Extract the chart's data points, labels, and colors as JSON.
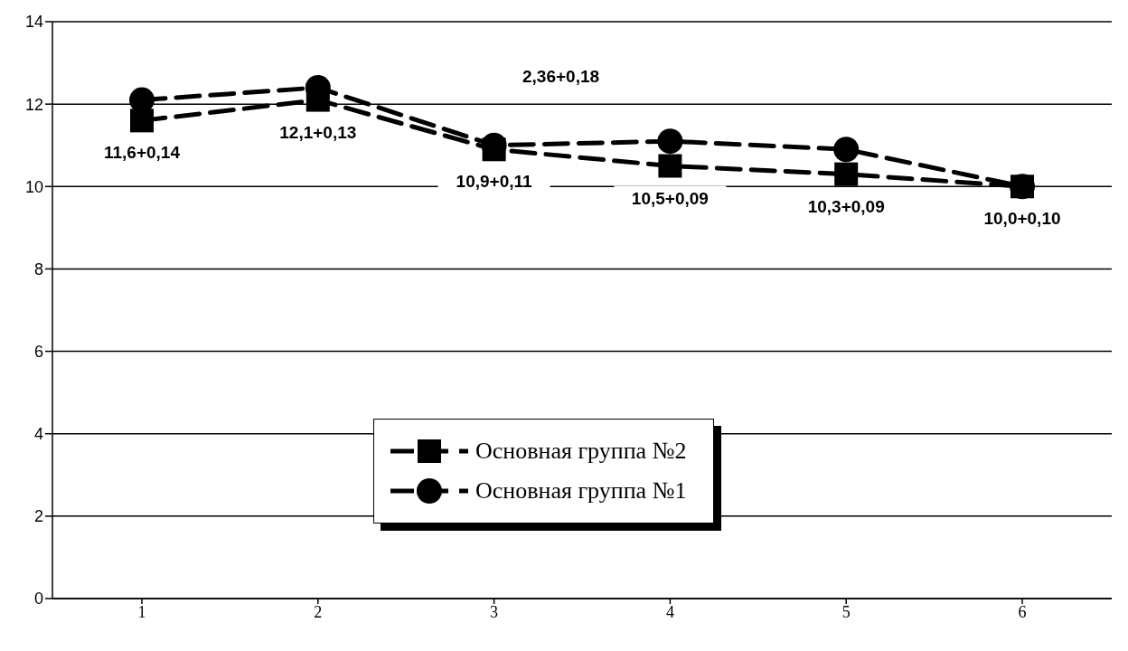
{
  "chart_data": {
    "type": "line",
    "categories": [
      "1",
      "2",
      "3",
      "4",
      "5",
      "6"
    ],
    "series": [
      {
        "name": "Основная группа №2",
        "color": "#000000",
        "marker": "square",
        "line_style": "dashed",
        "values": [
          11.6,
          12.1,
          10.9,
          10.5,
          10.3,
          10.0
        ],
        "value_labels": [
          "11,6+0,14",
          "12,1+0,13",
          "10,9+0,11",
          "10,5+0,09",
          "10,3+0,09",
          "10,0+0,10"
        ]
      },
      {
        "name": "Основная группа №1",
        "color": "#000000",
        "marker": "circle",
        "line_style": "dashed",
        "values": [
          12.1,
          12.4,
          11.0,
          11.1,
          10.9,
          10.0
        ]
      }
    ],
    "ylim": [
      0,
      14
    ],
    "yticks": [
      0,
      2,
      4,
      6,
      8,
      10,
      12,
      14
    ],
    "grid": "y",
    "legend": "bottom",
    "annotations": [
      "2,36+0,18"
    ]
  }
}
